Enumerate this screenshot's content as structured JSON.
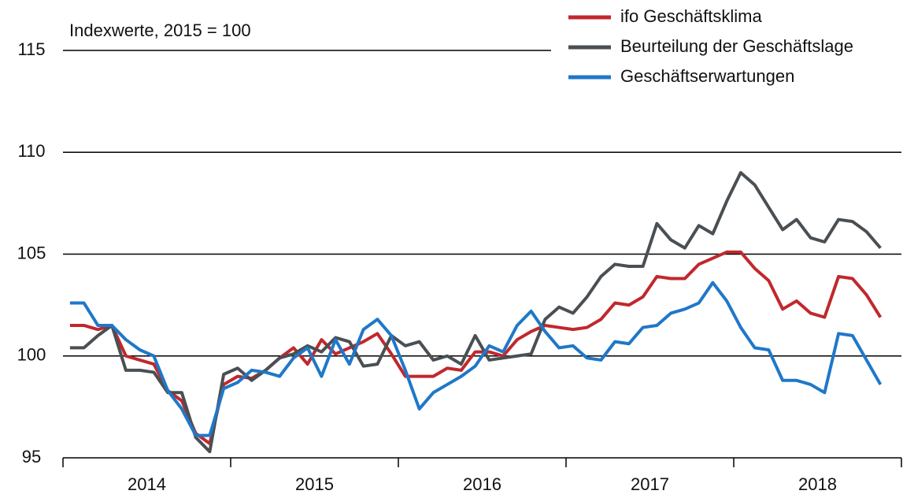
{
  "chart_data": {
    "type": "line",
    "annotation": "Indexwerte, 2015 = 100",
    "categories": [
      null,
      null,
      null,
      null,
      null,
      null,
      "2014",
      null,
      null,
      null,
      null,
      null,
      null,
      null,
      null,
      null,
      null,
      null,
      "2015",
      null,
      null,
      null,
      null,
      null,
      null,
      null,
      null,
      null,
      null,
      null,
      "2016",
      null,
      null,
      null,
      null,
      null,
      null,
      null,
      null,
      null,
      null,
      null,
      "2017",
      null,
      null,
      null,
      null,
      null,
      null,
      null,
      null,
      null,
      null,
      null,
      "2018",
      null,
      null,
      null,
      null
    ],
    "series": [
      {
        "name": "ifo Geschäftsklima",
        "color": "#c0282d",
        "values": [
          101.5,
          101.5,
          101.3,
          101.5,
          100.0,
          99.8,
          99.6,
          98.3,
          97.8,
          96.2,
          95.7,
          98.6,
          99.0,
          98.9,
          99.3,
          99.9,
          100.4,
          99.6,
          100.8,
          100.1,
          100.4,
          100.7,
          101.1,
          100.1,
          99.0,
          99.0,
          99.0,
          99.4,
          99.3,
          100.2,
          100.2,
          100.0,
          100.8,
          101.2,
          101.5,
          101.4,
          101.3,
          101.4,
          101.8,
          102.6,
          102.5,
          102.9,
          103.9,
          103.8,
          103.8,
          104.5,
          104.8,
          105.1,
          105.1,
          104.3,
          103.7,
          102.3,
          102.7,
          102.1,
          101.9,
          103.9,
          103.8,
          103.0,
          101.9
        ]
      },
      {
        "name": "Beurteilung der Geschäftslage",
        "color": "#4a4f53",
        "values": [
          100.4,
          100.4,
          101.0,
          101.5,
          99.3,
          99.3,
          99.2,
          98.2,
          98.2,
          96.0,
          95.3,
          99.1,
          99.4,
          98.8,
          99.3,
          99.9,
          100.1,
          100.5,
          100.2,
          100.9,
          100.7,
          99.5,
          99.6,
          101.0,
          100.5,
          100.7,
          99.8,
          100.0,
          99.6,
          101.0,
          99.8,
          99.9,
          100.0,
          100.1,
          101.8,
          102.4,
          102.1,
          102.9,
          103.9,
          104.5,
          104.4,
          104.4,
          106.5,
          105.7,
          105.3,
          106.4,
          106.0,
          107.6,
          109.0,
          108.4,
          107.3,
          106.2,
          106.7,
          105.8,
          105.6,
          106.7,
          106.6,
          106.1,
          105.3
        ]
      },
      {
        "name": "Geschäftserwartungen",
        "color": "#1f78c8",
        "values": [
          102.6,
          102.6,
          101.5,
          101.5,
          100.8,
          100.3,
          100.0,
          98.3,
          97.4,
          96.1,
          96.1,
          98.4,
          98.7,
          99.3,
          99.2,
          99.0,
          99.9,
          100.4,
          99.0,
          100.8,
          99.6,
          101.3,
          101.8,
          101.0,
          99.3,
          97.4,
          98.2,
          98.6,
          99.0,
          99.5,
          100.5,
          100.2,
          101.5,
          102.2,
          101.2,
          100.4,
          100.5,
          99.9,
          99.8,
          100.7,
          100.6,
          101.4,
          101.5,
          102.1,
          102.3,
          102.6,
          103.6,
          102.7,
          101.4,
          100.4,
          100.3,
          98.8,
          98.8,
          98.6,
          98.2,
          101.1,
          101.0,
          99.8,
          98.6
        ]
      }
    ],
    "ylim": [
      95,
      115
    ],
    "yticks": [
      95,
      100,
      105,
      110,
      115
    ],
    "grid": true,
    "legend": "top-right"
  }
}
